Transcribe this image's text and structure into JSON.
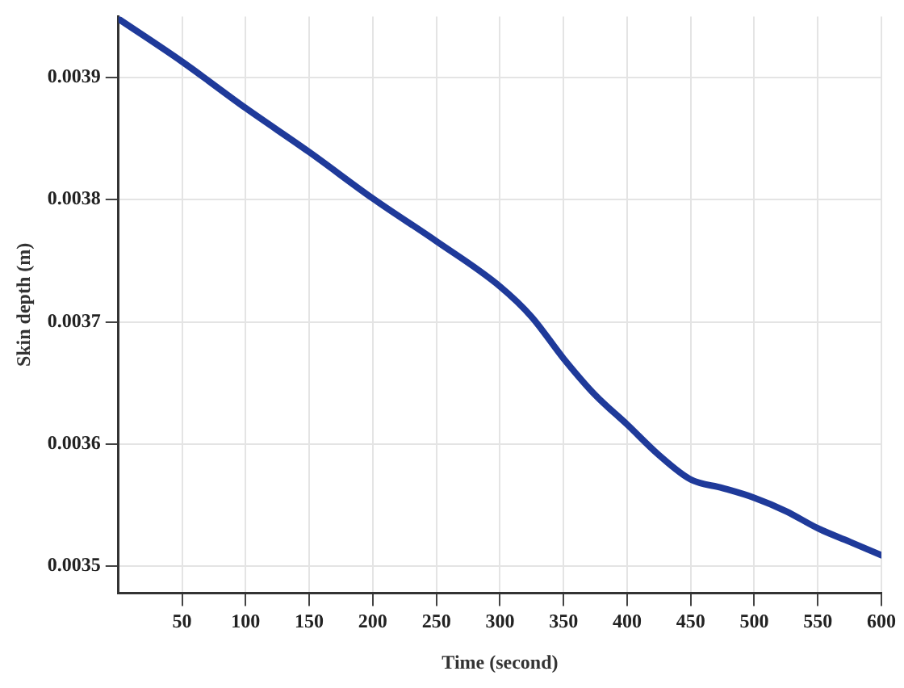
{
  "chart_data": {
    "type": "line",
    "xlabel": "Time (second)",
    "ylabel": "Skin depth (m)",
    "x": [
      0,
      50,
      100,
      150,
      200,
      250,
      300,
      325,
      350,
      375,
      400,
      425,
      450,
      475,
      500,
      525,
      550,
      575,
      600
    ],
    "series": [
      {
        "color": "#1f3a9a",
        "values": [
          0.003948,
          0.003913,
          0.003875,
          0.003839,
          0.003801,
          0.003766,
          0.003729,
          0.003704,
          0.00367,
          0.00364,
          0.003616,
          0.003591,
          0.003571,
          0.003564,
          0.003556,
          0.003545,
          0.003531,
          0.00352,
          0.003509
        ]
      }
    ],
    "xlim": [
      0,
      600
    ],
    "xticks": [
      50,
      100,
      150,
      200,
      250,
      300,
      350,
      400,
      450,
      500,
      550,
      600
    ],
    "ylim": [
      0.003478,
      0.00395
    ],
    "yticks": [
      0.0035,
      0.0036,
      0.0037,
      0.0038,
      0.0039
    ],
    "grid": true,
    "legend": false,
    "marker": "none",
    "line_style": "solid"
  }
}
